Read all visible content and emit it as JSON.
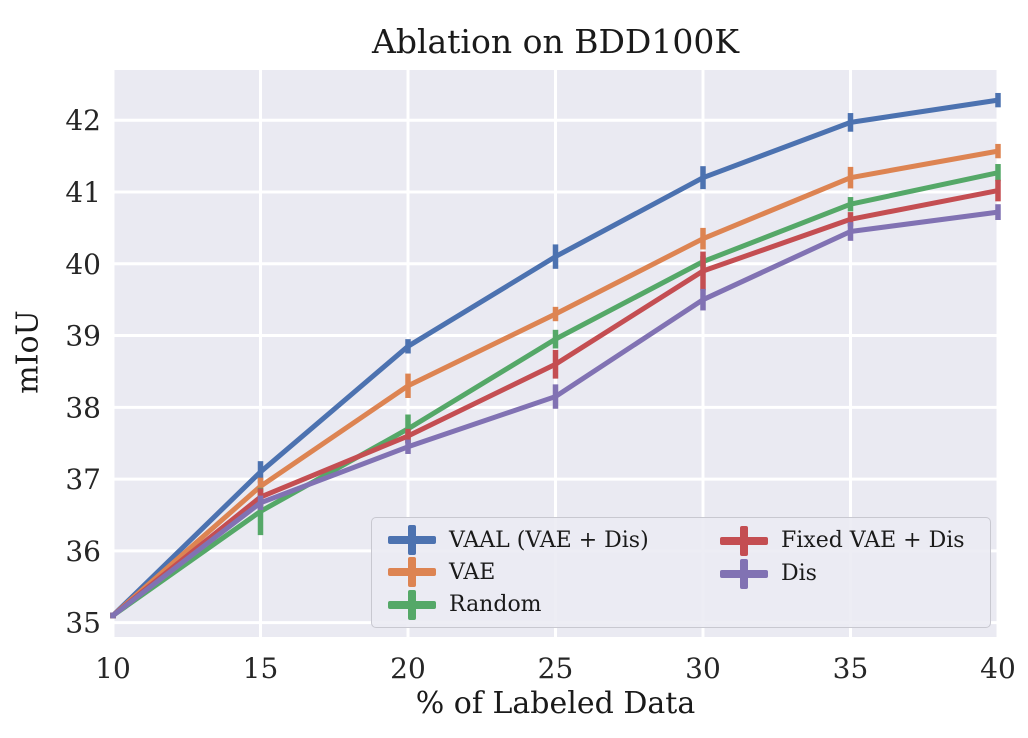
{
  "chart_data": {
    "type": "line",
    "title": "Ablation on BDD100K",
    "xlabel": "% of Labeled Data",
    "ylabel": "mIoU",
    "x": [
      10,
      15,
      20,
      25,
      30,
      35,
      40
    ],
    "xlim": [
      10,
      40
    ],
    "ylim": [
      34.8,
      42.7
    ],
    "xticks": [
      10,
      15,
      20,
      25,
      30,
      35,
      40
    ],
    "yticks": [
      35,
      36,
      37,
      38,
      39,
      40,
      41,
      42
    ],
    "grid": true,
    "background_color": "#EAEAF2",
    "grid_color": "#FFFFFF",
    "text_color": "#262626",
    "error_bars": true,
    "series": [
      {
        "name": "VAAL (VAE + Dis)",
        "color": "#4C72B0",
        "values": [
          35.1,
          37.1,
          38.85,
          40.1,
          41.2,
          41.97,
          42.28
        ],
        "yerr": [
          0.04,
          0.15,
          0.1,
          0.17,
          0.16,
          0.13,
          0.1
        ]
      },
      {
        "name": "VAE",
        "color": "#DD8452",
        "values": [
          35.1,
          36.9,
          38.3,
          39.3,
          40.35,
          41.2,
          41.57
        ],
        "yerr": [
          0.04,
          0.12,
          0.17,
          0.1,
          0.15,
          0.15,
          0.1
        ]
      },
      {
        "name": "Random",
        "color": "#55A868",
        "values": [
          35.1,
          36.55,
          37.7,
          38.95,
          40.03,
          40.83,
          41.27
        ],
        "yerr": [
          0.04,
          0.33,
          0.2,
          0.13,
          0.08,
          0.1,
          0.12
        ]
      },
      {
        "name": "Fixed VAE + Dis",
        "color": "#C44E52",
        "values": [
          35.1,
          36.75,
          37.6,
          38.6,
          39.9,
          40.62,
          41.02
        ],
        "yerr": [
          0.04,
          0.12,
          0.1,
          0.2,
          0.27,
          0.1,
          0.15
        ]
      },
      {
        "name": "Dis",
        "color": "#8172B3",
        "values": [
          35.1,
          36.67,
          37.45,
          38.15,
          39.5,
          40.45,
          40.72
        ],
        "yerr": [
          0.04,
          0.1,
          0.1,
          0.17,
          0.15,
          0.13,
          0.11
        ]
      }
    ],
    "legend": {
      "location": "lower right",
      "columns": [
        [
          0,
          1,
          2
        ],
        [
          3,
          4
        ]
      ],
      "facecolor": "#EAEAF2",
      "edgecolor": "#C8C8D0"
    }
  }
}
